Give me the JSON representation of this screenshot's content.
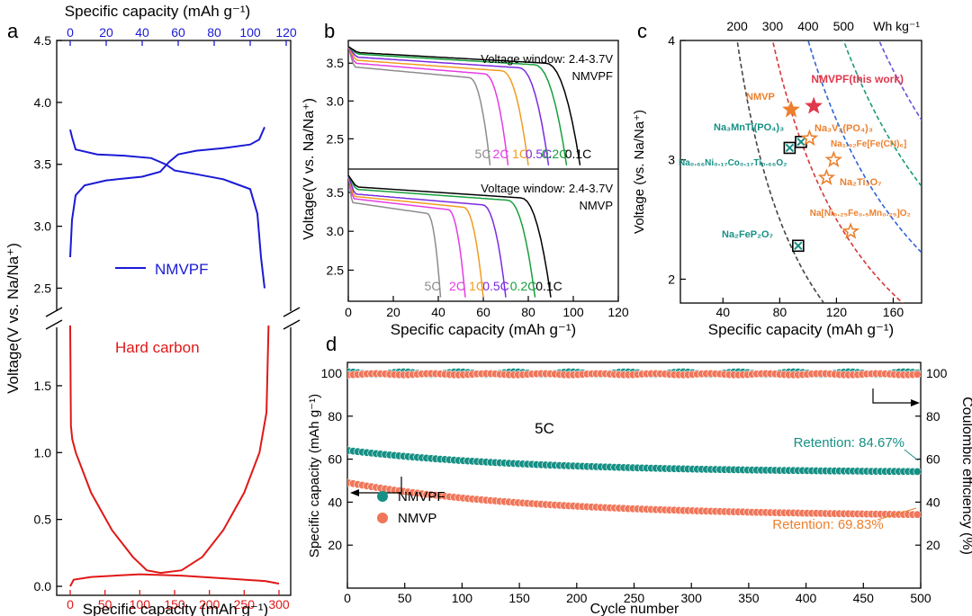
{
  "colors": {
    "nmvpf": "#1a1ad6",
    "hard_carbon": "#e01818",
    "teal": "#169085",
    "orange": "#ec7f2c",
    "salmon": "#f0765a",
    "c_5C": "#8c8c8c",
    "c_2C": "#e43ce4",
    "c_1C": "#f29b20",
    "c_05C": "#7a2be0",
    "c_02C": "#16a03c",
    "c_01C": "#000000"
  },
  "chart_data": [
    {
      "panel": "a",
      "type": "line",
      "top_xlabel": "Specific capacity (mAh g⁻¹)",
      "xlabel": "Specific capacity (mAh g⁻¹)",
      "ylabel": "Voltage(V vs. Na/Na⁺)",
      "top_xlim": [
        0,
        120
      ],
      "top_xticks": [
        "0",
        "20",
        "40",
        "60",
        "80",
        "100",
        "120"
      ],
      "xlim": [
        0,
        300
      ],
      "xticks": [
        "0",
        "50",
        "100",
        "150",
        "200",
        "250",
        "300"
      ],
      "ylim_upper": [
        2.3,
        4.5
      ],
      "yticks_upper": [
        "2.5",
        "3.0",
        "3.5",
        "4.0",
        "4.5"
      ],
      "ylim_lower": [
        0,
        1.95
      ],
      "yticks_lower": [
        "0.0",
        "0.5",
        "1.0",
        "1.5"
      ],
      "series": [
        {
          "name": "NMVPF",
          "axis": "top",
          "charge": [
            [
              0,
              2.75
            ],
            [
              1,
              3.05
            ],
            [
              3,
              3.25
            ],
            [
              8,
              3.33
            ],
            [
              20,
              3.37
            ],
            [
              40,
              3.4
            ],
            [
              50,
              3.44
            ],
            [
              55,
              3.52
            ],
            [
              60,
              3.58
            ],
            [
              70,
              3.61
            ],
            [
              85,
              3.63
            ],
            [
              100,
              3.66
            ],
            [
              105,
              3.7
            ],
            [
              108,
              3.8
            ]
          ],
          "discharge": [
            [
              108,
              2.5
            ],
            [
              106,
              2.75
            ],
            [
              104,
              3.1
            ],
            [
              100,
              3.3
            ],
            [
              85,
              3.38
            ],
            [
              70,
              3.42
            ],
            [
              58,
              3.45
            ],
            [
              53,
              3.5
            ],
            [
              45,
              3.55
            ],
            [
              30,
              3.57
            ],
            [
              15,
              3.58
            ],
            [
              3,
              3.62
            ],
            [
              1,
              3.72
            ],
            [
              0,
              3.78
            ]
          ]
        },
        {
          "name": "Hard carbon",
          "axis": "bottom",
          "charge": [
            [
              0,
              1.95
            ],
            [
              1,
              1.2
            ],
            [
              3,
              1.1
            ],
            [
              8,
              1.0
            ],
            [
              30,
              0.7
            ],
            [
              60,
              0.42
            ],
            [
              90,
              0.22
            ],
            [
              110,
              0.12
            ],
            [
              130,
              0.1
            ],
            [
              160,
              0.12
            ],
            [
              190,
              0.22
            ],
            [
              220,
              0.42
            ],
            [
              250,
              0.7
            ],
            [
              272,
              1.0
            ],
            [
              282,
              1.3
            ],
            [
              285,
              1.95
            ]
          ],
          "discharge": [
            [
              0,
              0.0
            ],
            [
              5,
              0.05
            ],
            [
              30,
              0.07
            ],
            [
              100,
              0.09
            ],
            [
              160,
              0.08
            ],
            [
              220,
              0.06
            ],
            [
              280,
              0.04
            ],
            [
              300,
              0.02
            ]
          ]
        }
      ]
    },
    {
      "panel": "b",
      "type": "line",
      "xlabel": "Specific capacity (mAh g⁻¹)",
      "ylabel": "Voltage(V vs. Na/Na⁺)",
      "xlim": [
        0,
        120
      ],
      "xticks": [
        "0",
        "20",
        "40",
        "60",
        "80",
        "100",
        "120"
      ],
      "ylim": [
        2.1,
        3.8
      ],
      "yticks": [
        "2.5",
        "3.0",
        "3.5"
      ],
      "series": [
        {
          "name": "NMVPF",
          "window": "Voltage window: 2.4-3.7V",
          "rates": [
            {
              "label": "5C",
              "cap": 63,
              "plateau": 3.33
            },
            {
              "label": "2C",
              "cap": 71,
              "plateau": 3.38
            },
            {
              "label": "1C",
              "cap": 80,
              "plateau": 3.42
            },
            {
              "label": "0.5C",
              "cap": 89,
              "plateau": 3.46
            },
            {
              "label": "0.2C",
              "cap": 97,
              "plateau": 3.5
            },
            {
              "label": "0.1C",
              "cap": 103,
              "plateau": 3.52
            }
          ]
        },
        {
          "name": "NMVP",
          "window": "Voltage window: 2.4-3.7V",
          "rates": [
            {
              "label": "5C",
              "cap": 41,
              "plateau": 3.25
            },
            {
              "label": "2C",
              "cap": 52,
              "plateau": 3.3
            },
            {
              "label": "1C",
              "cap": 60,
              "plateau": 3.33
            },
            {
              "label": "0.5C",
              "cap": 70,
              "plateau": 3.36
            },
            {
              "label": "0.2C",
              "cap": 83,
              "plateau": 3.42
            },
            {
              "label": "0.1C",
              "cap": 90,
              "plateau": 3.45
            }
          ]
        }
      ]
    },
    {
      "panel": "c",
      "type": "scatter",
      "xlabel": "Specific capacity (mAh g⁻¹)",
      "ylabel": "Voltage (vs. Na/Na⁺)",
      "xlim": [
        10,
        180
      ],
      "xticks": [
        "40",
        "80",
        "120",
        "160"
      ],
      "ylim": [
        1.8,
        4.0
      ],
      "yticks": [
        "2",
        "3",
        "4"
      ],
      "energy_label": "Wh kg⁻¹",
      "energy_ticks": [
        "200",
        "300",
        "400",
        "500"
      ],
      "energy_contours": [
        {
          "value": 200,
          "color": "#444444"
        },
        {
          "value": 300,
          "color": "#d83838"
        },
        {
          "value": 400,
          "color": "#2f64d8"
        },
        {
          "value": 500,
          "color": "#1b9a7a"
        },
        {
          "value": 600,
          "color": "#6b4fd8"
        }
      ],
      "points": [
        {
          "name": "NMVPF(this work)",
          "x": 104,
          "y": 3.45,
          "marker": "star-filled",
          "color": "#e0384c"
        },
        {
          "name": "NMVP",
          "x": 88,
          "y": 3.42,
          "marker": "star-filled",
          "color": "#ec7f2c"
        },
        {
          "name": "Na₃MnTi(PO₄)₃",
          "x": 95,
          "y": 3.15,
          "marker": "boxed-x",
          "color": "#169085"
        },
        {
          "name": "Na₀.₆₆Ni₀.₁₇Co₀.₁₇Ti₀.₆₆O₂",
          "x": 87,
          "y": 3.1,
          "marker": "boxed-x",
          "color": "#169085"
        },
        {
          "name": "Na₂FeP₂O₇",
          "x": 93,
          "y": 2.28,
          "marker": "boxed-x",
          "color": "#169085"
        },
        {
          "name": "Na₃V₂(PO₄)₃",
          "x": 101,
          "y": 3.18,
          "marker": "star-open",
          "color": "#ec7f2c"
        },
        {
          "name": "Na₁.₉₂Fe[Fe(CN)₆]",
          "x": 118,
          "y": 3.0,
          "marker": "star-open",
          "color": "#ec7f2c"
        },
        {
          "name": "Na₂Ti₃O₇",
          "x": 113,
          "y": 2.85,
          "marker": "star-open",
          "color": "#ec7f2c"
        },
        {
          "name": "Na[Ni₀.₂₅Fe₀.₅Mn₀.₂₅]O₂",
          "x": 130,
          "y": 2.4,
          "marker": "star-open",
          "color": "#ec7f2c"
        }
      ]
    },
    {
      "panel": "d",
      "type": "scatter",
      "xlabel": "Cycle number",
      "ylabel": "Specific capacity (mAh g⁻¹)",
      "y2label": "Coulombic efficiency (%)",
      "xlim": [
        0,
        500
      ],
      "xticks": [
        "0",
        "50",
        "100",
        "150",
        "200",
        "250",
        "300",
        "350",
        "400",
        "450",
        "500"
      ],
      "ylim": [
        0,
        105
      ],
      "yticks": [
        "20",
        "40",
        "60",
        "80",
        "100"
      ],
      "y2lim": [
        0,
        105
      ],
      "y2ticks": [
        "20",
        "40",
        "60",
        "80",
        "100"
      ],
      "rate_label": "5C",
      "series": [
        {
          "name": "NMVPF",
          "color": "#169085",
          "capacity_start": 64,
          "capacity_end": 54.2,
          "coulombic": 100,
          "retention": "Retention: 84.67%"
        },
        {
          "name": "NMVP",
          "color": "#f0765a",
          "capacity_start": 49,
          "capacity_end": 34.2,
          "coulombic": 99.5,
          "retention": "Retention: 69.83%"
        }
      ]
    }
  ],
  "panels": {
    "a": "a",
    "b": "b",
    "c": "c",
    "d": "d"
  },
  "legend_a": {
    "nmvpf": "NMVPF",
    "hard_carbon": "Hard carbon"
  },
  "legend_d": {
    "nmvpf": "NMVPF",
    "nmvp": "NMVP"
  },
  "b_labels": {
    "window_top": "Voltage window: 2.4-3.7V",
    "name_top": "NMVPF",
    "window_bottom": "Voltage window: 2.4-3.7V",
    "name_bottom": "NMVP"
  }
}
